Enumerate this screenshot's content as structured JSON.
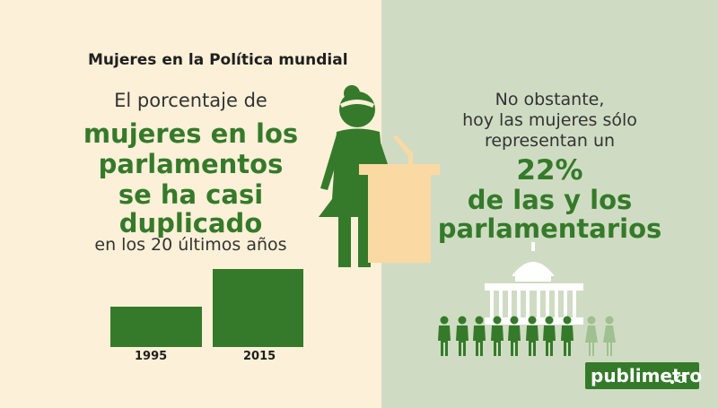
{
  "heading": "Mujeres en la Política mundial",
  "left": {
    "intro": "El porcentaje de",
    "big_lines": [
      "mujeres en los",
      "parlamentos",
      "se ha casi",
      "duplicado"
    ],
    "outro": "en los 20 últimos años"
  },
  "bars": [
    {
      "year": "1995",
      "value": 1
    },
    {
      "year": "2015",
      "value": 2
    }
  ],
  "right": {
    "lines": [
      "No obstante,",
      "hoy las mujeres sólo",
      "representan un"
    ],
    "percent": "22%",
    "big_lines": [
      "de las y los",
      "parlamentarios"
    ]
  },
  "people": {
    "men": 8,
    "women": 2
  },
  "logo": {
    "main": "publimetro",
    "suffix": "cl"
  },
  "colors": {
    "green": "#357a2a",
    "cream": "#fdf0d8",
    "sage": "#cfdcc3",
    "podium": "#fbd9a3",
    "light_green": "#9fc08f"
  },
  "icons": [
    "woman-speaker-icon",
    "podium-icon",
    "microphone-icon",
    "capitol-building-icon",
    "man-figure-icon",
    "woman-figure-icon"
  ]
}
